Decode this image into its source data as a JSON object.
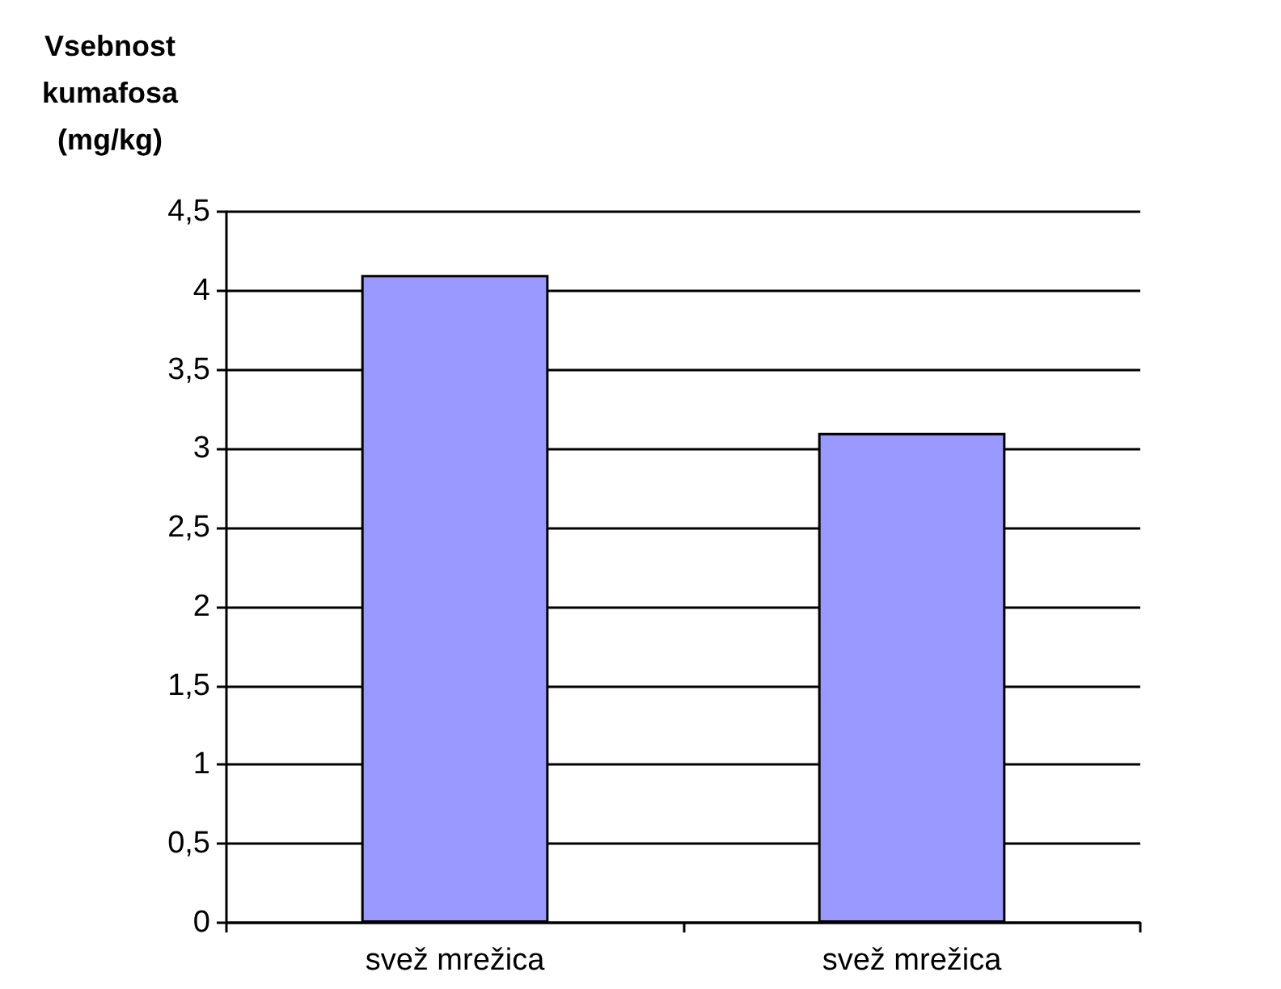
{
  "chart_data": {
    "type": "bar",
    "ylabel": "Vsebnost kumafosa (mg/kg)",
    "categories": [
      "svež mrežica",
      "svež mrežica"
    ],
    "values": [
      4.1,
      3.1
    ],
    "color": "#9999ff",
    "ylim": [
      0,
      4.5
    ],
    "yticks": [
      0,
      {
        "value": 0.5,
        "label": "0,5"
      },
      1,
      {
        "value": 1.5,
        "label": "1,5"
      },
      2,
      {
        "value": 2.5,
        "label": "2,5"
      },
      3,
      {
        "value": 3.5,
        "label": "3,5"
      },
      4,
      {
        "value": 4.5,
        "label": "4,5"
      }
    ],
    "grid": "y"
  }
}
